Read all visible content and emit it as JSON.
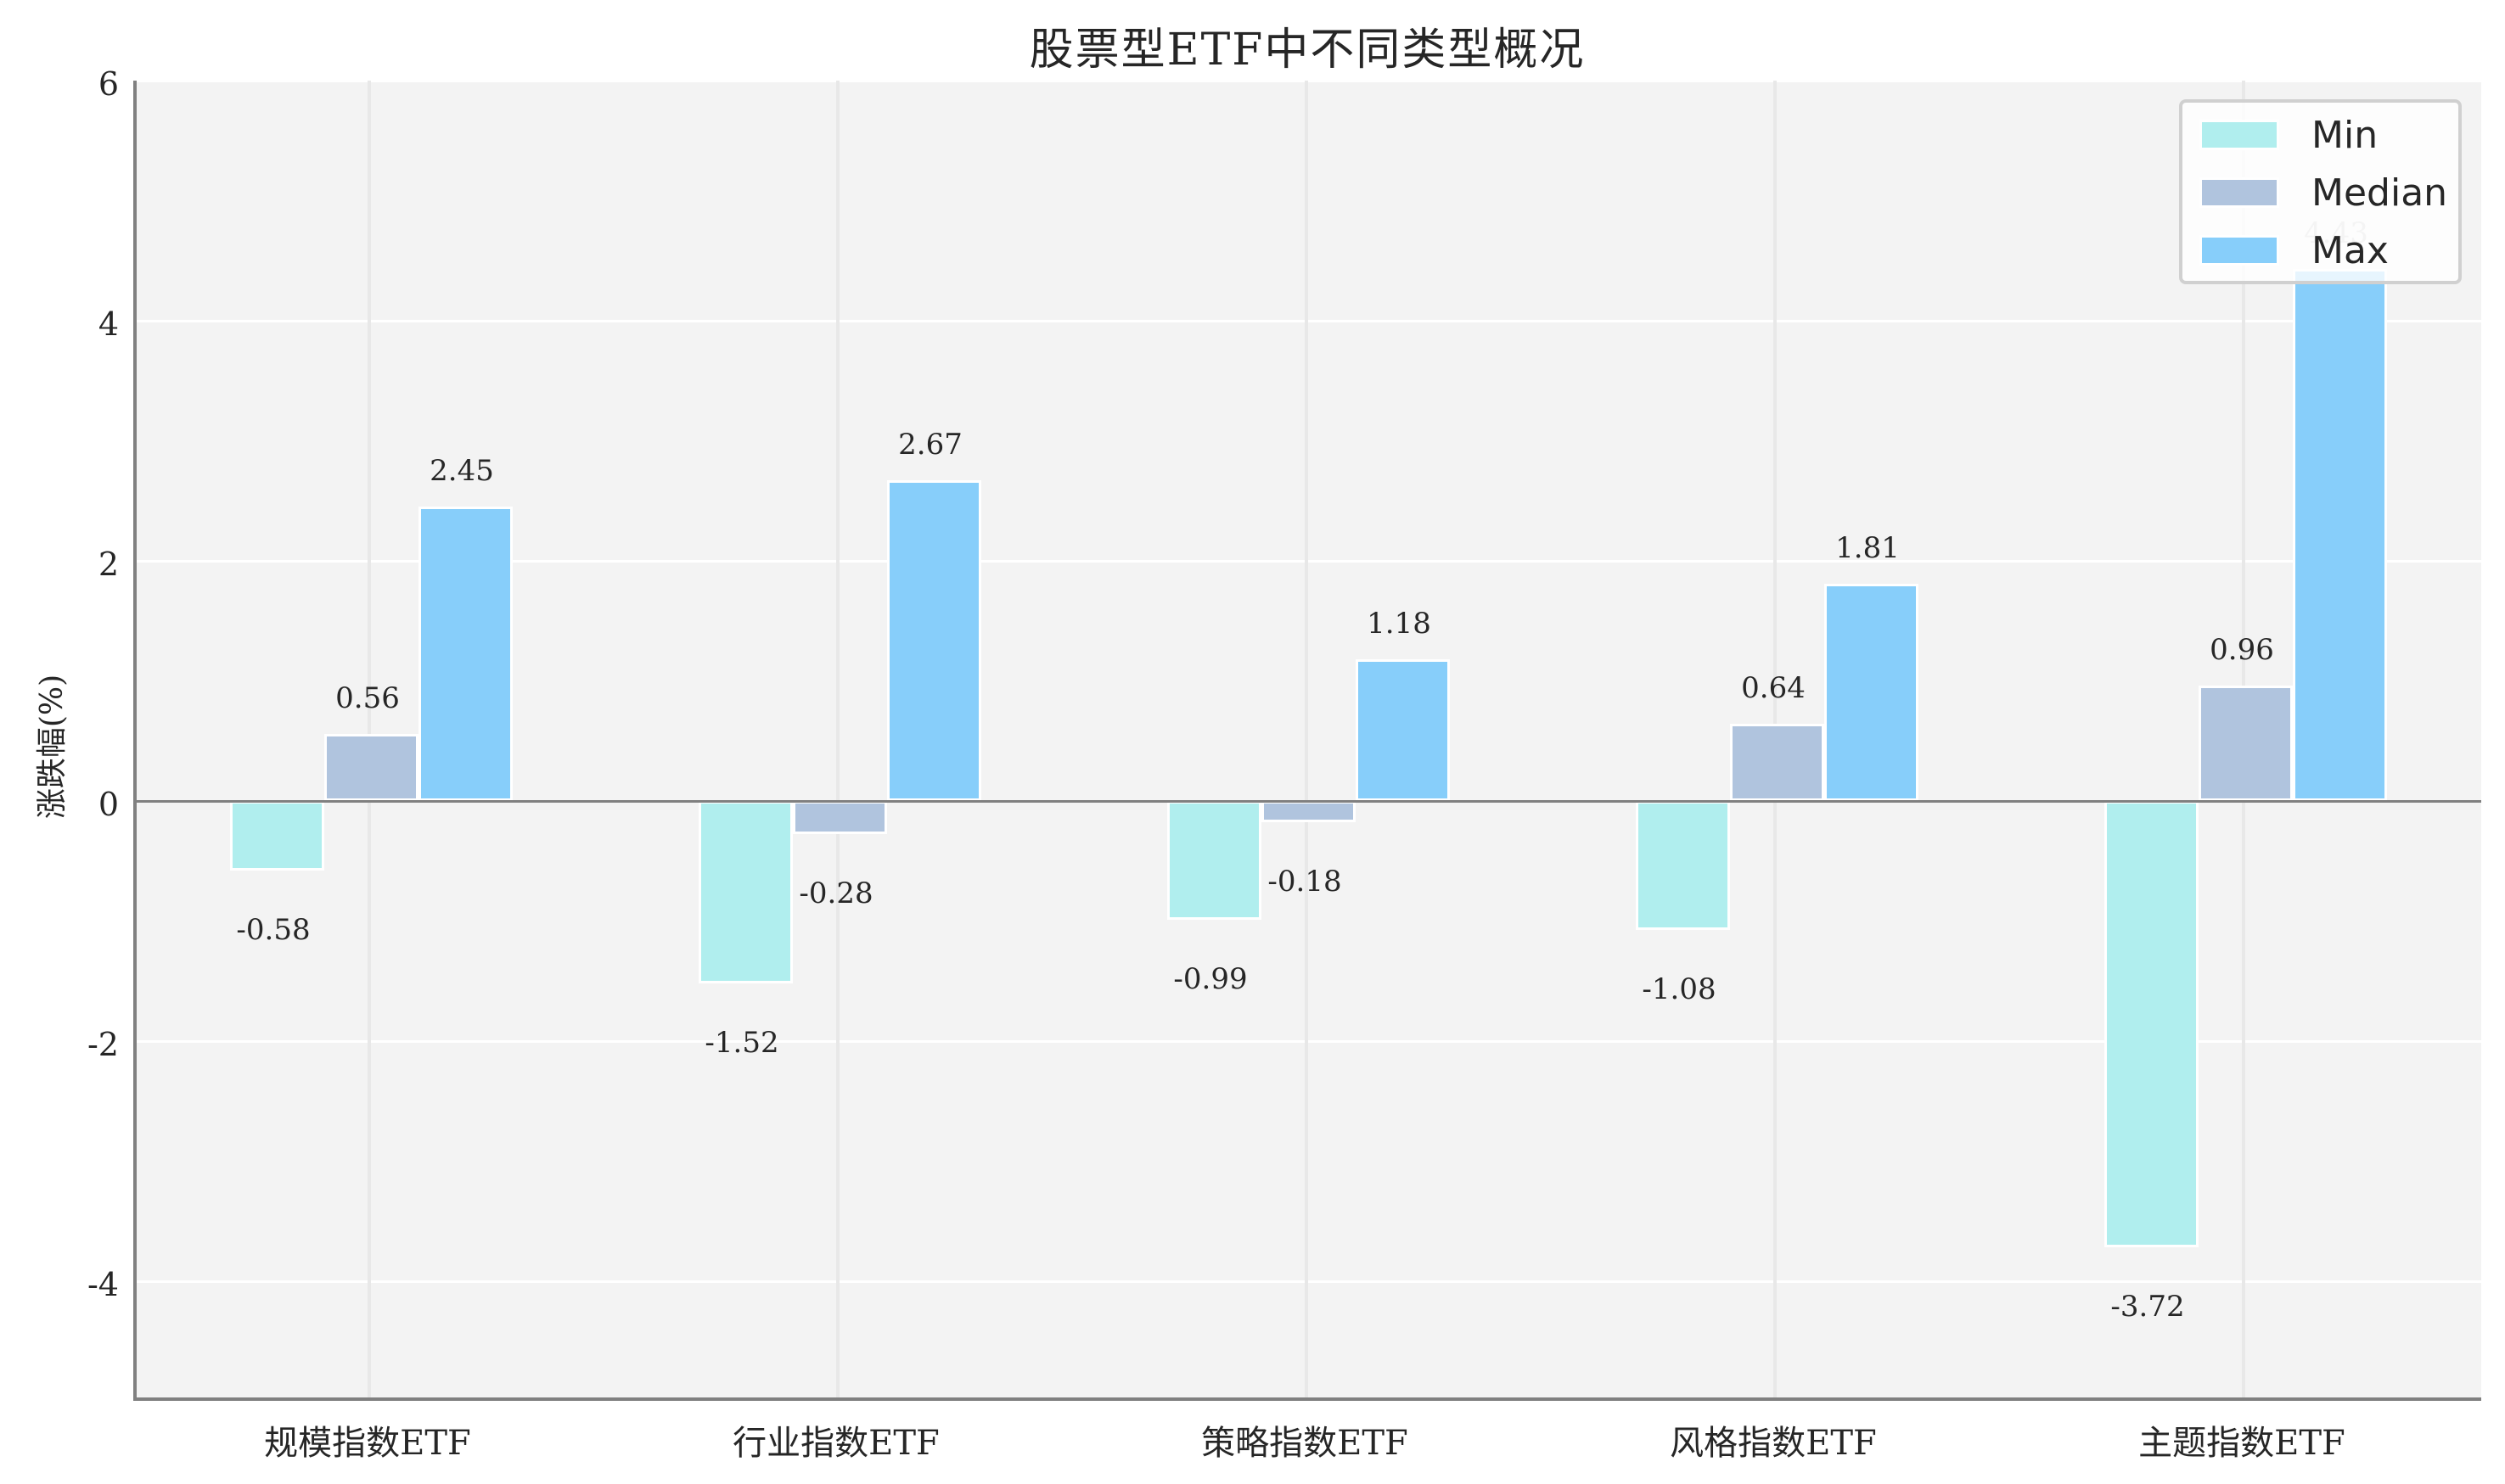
{
  "title": "股票型ETF中不同类型概况",
  "y_axis_label": "涨跌幅(%)",
  "legend": [
    {
      "label": "Min",
      "color": "#b0eeee"
    },
    {
      "label": "Median",
      "color": "#b0c4de"
    },
    {
      "label": "Max",
      "color": "#87cefa"
    }
  ],
  "y_ticks": [
    "6",
    "4",
    "2",
    "0",
    "-2",
    "-4"
  ],
  "chart_data": {
    "type": "bar",
    "title": "股票型ETF中不同类型概况",
    "xlabel": "",
    "ylabel": "涨跌幅(%)",
    "categories": [
      "规模指数ETF",
      "行业指数ETF",
      "策略指数ETF",
      "风格指数ETF",
      "主题指数ETF"
    ],
    "series": [
      {
        "name": "Min",
        "color": "#b0eeee",
        "values": [
          -0.58,
          -1.52,
          -0.99,
          -1.08,
          -3.72
        ]
      },
      {
        "name": "Median",
        "color": "#b0c4de",
        "values": [
          0.56,
          -0.28,
          -0.18,
          0.64,
          0.96
        ]
      },
      {
        "name": "Max",
        "color": "#87cefa",
        "values": [
          2.45,
          2.67,
          1.18,
          1.81,
          4.43
        ]
      }
    ],
    "value_labels": [
      [
        "-0.58",
        "0.56",
        "2.45"
      ],
      [
        "-1.52",
        "-0.28",
        "2.67"
      ],
      [
        "-0.99",
        "-0.18",
        "1.18"
      ],
      [
        "-1.08",
        "0.64",
        "1.81"
      ],
      [
        "-3.72",
        "0.96",
        "4.43"
      ]
    ],
    "ylim": [
      -5,
      6
    ],
    "yticks": [
      -4,
      -2,
      0,
      2,
      4,
      6
    ],
    "grid": true,
    "legend_position": "upper right",
    "background": "#f3f3f3"
  }
}
